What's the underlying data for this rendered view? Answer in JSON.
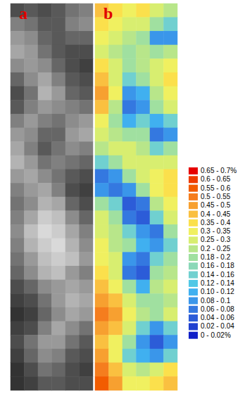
{
  "chart_data": [
    {
      "type": "heatmap",
      "label": "a",
      "color_range": [
        0,
        1
      ],
      "color_scale": [
        "#000000",
        "#ffffff"
      ],
      "cells": [
        [
          0.3,
          0.35,
          0.3,
          0.35,
          0.45,
          0.5
        ],
        [
          0.5,
          0.45,
          0.35,
          0.35,
          0.5,
          0.55
        ],
        [
          0.6,
          0.55,
          0.4,
          0.35,
          0.4,
          0.4
        ],
        [
          0.65,
          0.6,
          0.45,
          0.35,
          0.3,
          0.3
        ],
        [
          0.55,
          0.6,
          0.55,
          0.4,
          0.3,
          0.25
        ],
        [
          0.4,
          0.55,
          0.65,
          0.5,
          0.35,
          0.3
        ],
        [
          0.3,
          0.45,
          0.7,
          0.6,
          0.4,
          0.35
        ],
        [
          0.35,
          0.5,
          0.6,
          0.55,
          0.5,
          0.45
        ],
        [
          0.5,
          0.6,
          0.5,
          0.45,
          0.55,
          0.6
        ],
        [
          0.6,
          0.55,
          0.4,
          0.4,
          0.6,
          0.65
        ],
        [
          0.65,
          0.5,
          0.35,
          0.45,
          0.55,
          0.5
        ],
        [
          0.7,
          0.6,
          0.45,
          0.5,
          0.45,
          0.4
        ],
        [
          0.6,
          0.65,
          0.55,
          0.45,
          0.35,
          0.3
        ],
        [
          0.5,
          0.6,
          0.65,
          0.5,
          0.3,
          0.25
        ],
        [
          0.45,
          0.55,
          0.7,
          0.65,
          0.4,
          0.3
        ],
        [
          0.5,
          0.65,
          0.8,
          0.75,
          0.55,
          0.4
        ],
        [
          0.55,
          0.75,
          0.85,
          0.8,
          0.65,
          0.5
        ],
        [
          0.5,
          0.7,
          0.8,
          0.85,
          0.7,
          0.55
        ],
        [
          0.45,
          0.6,
          0.75,
          0.8,
          0.75,
          0.6
        ],
        [
          0.4,
          0.55,
          0.7,
          0.75,
          0.6,
          0.5
        ],
        [
          0.3,
          0.4,
          0.55,
          0.6,
          0.65,
          0.6
        ],
        [
          0.25,
          0.3,
          0.45,
          0.6,
          0.7,
          0.65
        ],
        [
          0.2,
          0.25,
          0.4,
          0.55,
          0.65,
          0.6
        ],
        [
          0.25,
          0.3,
          0.5,
          0.65,
          0.55,
          0.45
        ],
        [
          0.3,
          0.45,
          0.6,
          0.6,
          0.45,
          0.35
        ],
        [
          0.25,
          0.4,
          0.55,
          0.5,
          0.35,
          0.3
        ],
        [
          0.2,
          0.3,
          0.45,
          0.4,
          0.3,
          0.25
        ],
        [
          0.2,
          0.25,
          0.35,
          0.35,
          0.3,
          0.3
        ]
      ]
    },
    {
      "type": "heatmap",
      "label": "b",
      "cells": [
        [
          0.45,
          0.4,
          0.35,
          0.4,
          0.3,
          0.25
        ],
        [
          0.4,
          0.35,
          0.3,
          0.3,
          0.2,
          0.15
        ],
        [
          0.35,
          0.3,
          0.25,
          0.2,
          0.1,
          0.1
        ],
        [
          0.3,
          0.25,
          0.2,
          0.25,
          0.2,
          0.25
        ],
        [
          0.4,
          0.3,
          0.2,
          0.25,
          0.3,
          0.35
        ],
        [
          0.45,
          0.3,
          0.15,
          0.2,
          0.3,
          0.4
        ],
        [
          0.5,
          0.35,
          0.1,
          0.12,
          0.25,
          0.35
        ],
        [
          0.45,
          0.25,
          0.08,
          0.1,
          0.2,
          0.3
        ],
        [
          0.35,
          0.2,
          0.12,
          0.15,
          0.12,
          0.15
        ],
        [
          0.3,
          0.25,
          0.2,
          0.2,
          0.08,
          0.1
        ],
        [
          0.25,
          0.3,
          0.3,
          0.25,
          0.15,
          0.2
        ],
        [
          0.15,
          0.2,
          0.3,
          0.3,
          0.3,
          0.3
        ],
        [
          0.08,
          0.1,
          0.2,
          0.3,
          0.35,
          0.4
        ],
        [
          0.1,
          0.08,
          0.1,
          0.2,
          0.35,
          0.4
        ],
        [
          0.2,
          0.15,
          0.06,
          0.08,
          0.25,
          0.35
        ],
        [
          0.3,
          0.2,
          0.08,
          0.06,
          0.15,
          0.3
        ],
        [
          0.3,
          0.25,
          0.15,
          0.1,
          0.08,
          0.2
        ],
        [
          0.35,
          0.25,
          0.2,
          0.12,
          0.1,
          0.15
        ],
        [
          0.35,
          0.3,
          0.1,
          0.08,
          0.15,
          0.2
        ],
        [
          0.4,
          0.3,
          0.08,
          0.06,
          0.2,
          0.25
        ],
        [
          0.45,
          0.35,
          0.2,
          0.12,
          0.25,
          0.3
        ],
        [
          0.5,
          0.45,
          0.3,
          0.2,
          0.2,
          0.25
        ],
        [
          0.55,
          0.5,
          0.35,
          0.25,
          0.2,
          0.3
        ],
        [
          0.5,
          0.45,
          0.3,
          0.15,
          0.1,
          0.15
        ],
        [
          0.45,
          0.35,
          0.2,
          0.1,
          0.06,
          0.1
        ],
        [
          0.5,
          0.35,
          0.15,
          0.12,
          0.1,
          0.15
        ],
        [
          0.55,
          0.45,
          0.3,
          0.25,
          0.3,
          0.4
        ],
        [
          0.6,
          0.5,
          0.35,
          0.35,
          0.4,
          0.45
        ]
      ],
      "color_bins": [
        {
          "min": 0.65,
          "max": 0.7,
          "label": "0.65 - 0.7%",
          "color": "#e60000"
        },
        {
          "min": 0.6,
          "max": 0.65,
          "label": "0.6 - 0.65",
          "color": "#ee3b00"
        },
        {
          "min": 0.55,
          "max": 0.6,
          "label": "0.55 - 0.6",
          "color": "#f25c00"
        },
        {
          "min": 0.5,
          "max": 0.55,
          "label": "0.5 - 0.55",
          "color": "#f57d1e"
        },
        {
          "min": 0.45,
          "max": 0.5,
          "label": "0.45 - 0.5",
          "color": "#f7a030"
        },
        {
          "min": 0.4,
          "max": 0.45,
          "label": "0.4 - 0.45",
          "color": "#fac040"
        },
        {
          "min": 0.35,
          "max": 0.4,
          "label": "0.35 - 0.4",
          "color": "#fbe04c"
        },
        {
          "min": 0.3,
          "max": 0.35,
          "label": "0.3 - 0.35",
          "color": "#f0f060"
        },
        {
          "min": 0.25,
          "max": 0.3,
          "label": "0.25 - 0.3",
          "color": "#d8ee70"
        },
        {
          "min": 0.2,
          "max": 0.25,
          "label": "0.2 - 0.25",
          "color": "#b8e68a"
        },
        {
          "min": 0.18,
          "max": 0.2,
          "label": "0.18 - 0.2",
          "color": "#a0e0a0"
        },
        {
          "min": 0.16,
          "max": 0.18,
          "label": "0.16 - 0.18",
          "color": "#8ad8b8"
        },
        {
          "min": 0.14,
          "max": 0.16,
          "label": "0.14 - 0.16",
          "color": "#70d0d0"
        },
        {
          "min": 0.12,
          "max": 0.14,
          "label": "0.12 - 0.14",
          "color": "#50c8e6"
        },
        {
          "min": 0.1,
          "max": 0.12,
          "label": "0.10 - 0.12",
          "color": "#40b0f0"
        },
        {
          "min": 0.08,
          "max": 0.1,
          "label": "0.08 - 0.1",
          "color": "#3a96ea"
        },
        {
          "min": 0.06,
          "max": 0.08,
          "label": "0.06 - 0.08",
          "color": "#3478e0"
        },
        {
          "min": 0.04,
          "max": 0.06,
          "label": "0.04 - 0.06",
          "color": "#2c5cd8"
        },
        {
          "min": 0.02,
          "max": 0.04,
          "label": "0.02 - 0.04",
          "color": "#2040d0"
        },
        {
          "min": 0,
          "max": 0.02,
          "label": "0 - 0.02%",
          "color": "#1020c8"
        }
      ]
    }
  ]
}
